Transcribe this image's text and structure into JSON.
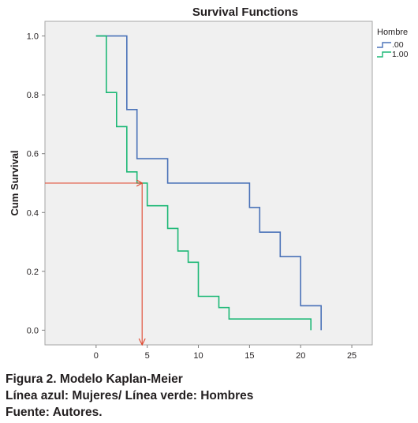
{
  "chart_data": {
    "type": "line",
    "step": true,
    "title": "Survival Functions",
    "xlabel": "",
    "ylabel": "Cum Survival",
    "xlim": [
      -5,
      27
    ],
    "ylim": [
      -0.05,
      1.05
    ],
    "x_ticks": [
      "0",
      "5",
      "10",
      "15",
      "20",
      "25"
    ],
    "y_ticks": [
      "0.0",
      "0.2",
      "0.4",
      "0.6",
      "0.8",
      "1.0"
    ],
    "grid": false,
    "legend": {
      "title": "Hombre",
      "position": "top-right"
    },
    "plot_background": "#f0f0f0",
    "series": [
      {
        "name": ".00",
        "color": "#4a72b8",
        "points": [
          [
            0,
            1.0
          ],
          [
            3,
            1.0
          ],
          [
            3,
            0.75
          ],
          [
            4,
            0.75
          ],
          [
            4,
            0.583
          ],
          [
            7,
            0.583
          ],
          [
            7,
            0.5
          ],
          [
            15,
            0.5
          ],
          [
            15,
            0.417
          ],
          [
            16,
            0.417
          ],
          [
            16,
            0.333
          ],
          [
            18,
            0.333
          ],
          [
            18,
            0.25
          ],
          [
            20,
            0.25
          ],
          [
            20,
            0.083
          ],
          [
            22,
            0.083
          ],
          [
            22,
            0.0
          ]
        ]
      },
      {
        "name": "1.00",
        "color": "#1db876",
        "points": [
          [
            0,
            1.0
          ],
          [
            1,
            1.0
          ],
          [
            1,
            0.808
          ],
          [
            2,
            0.808
          ],
          [
            2,
            0.692
          ],
          [
            3,
            0.692
          ],
          [
            3,
            0.538
          ],
          [
            4,
            0.538
          ],
          [
            4,
            0.5
          ],
          [
            5,
            0.5
          ],
          [
            5,
            0.423
          ],
          [
            7,
            0.423
          ],
          [
            7,
            0.346
          ],
          [
            8,
            0.346
          ],
          [
            8,
            0.269
          ],
          [
            9,
            0.269
          ],
          [
            9,
            0.231
          ],
          [
            10,
            0.231
          ],
          [
            10,
            0.115
          ],
          [
            12,
            0.115
          ],
          [
            12,
            0.077
          ],
          [
            13,
            0.077
          ],
          [
            13,
            0.038
          ],
          [
            21,
            0.038
          ],
          [
            21,
            0.0
          ]
        ]
      }
    ],
    "annotations": [
      {
        "type": "median-arrow",
        "color": "#e0452c",
        "y": 0.5,
        "x": 4.5
      }
    ]
  },
  "caption": {
    "line1": "Figura 2. Modelo Kaplan-Meier",
    "line2": "Línea azul: Mujeres/ Línea verde: Hombres",
    "line3": "Fuente: Autores."
  }
}
